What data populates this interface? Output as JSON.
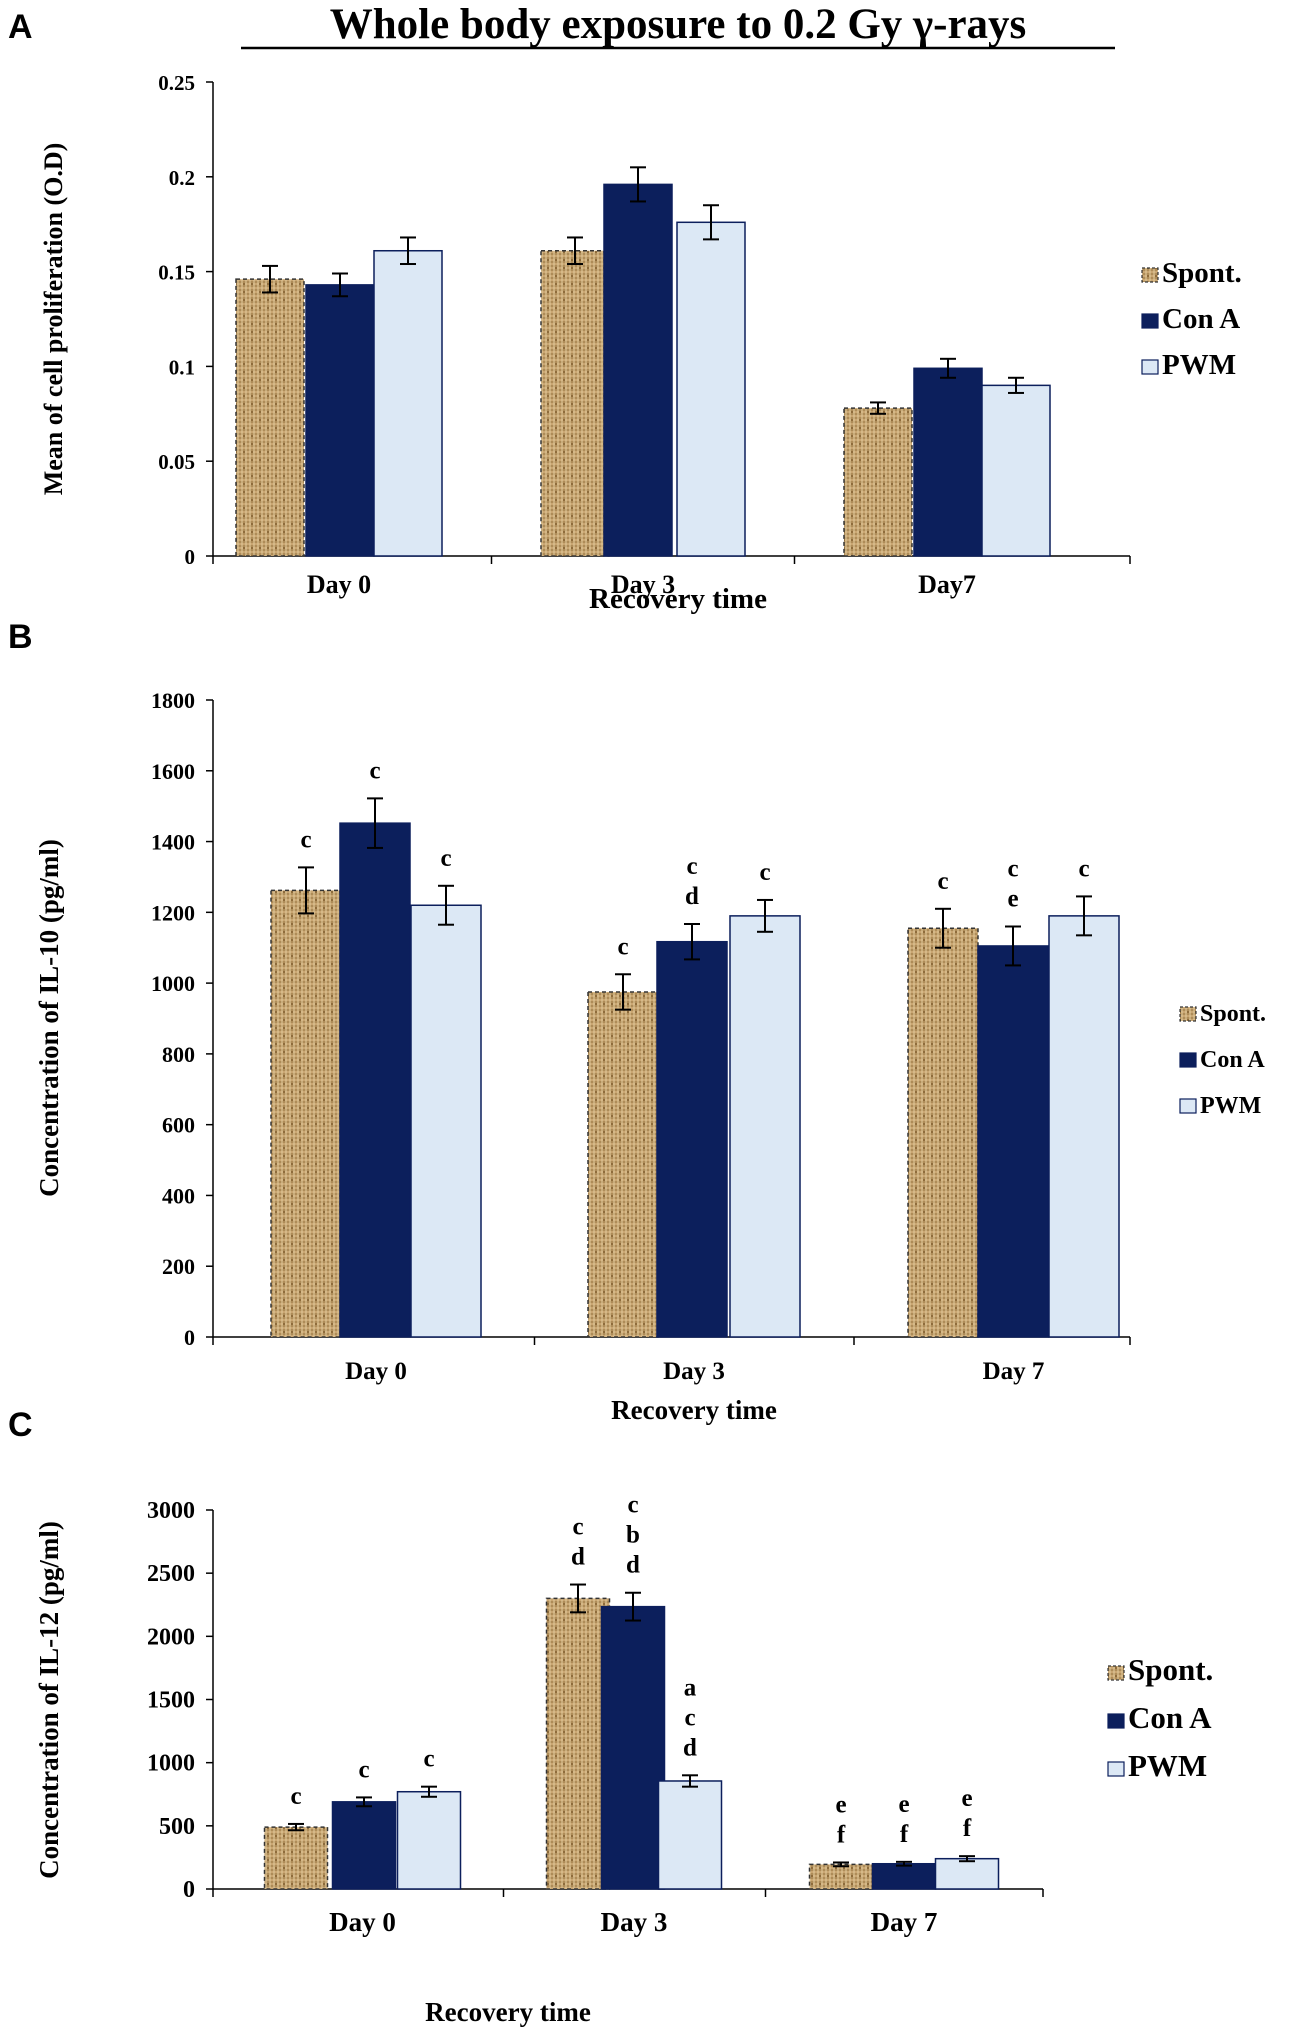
{
  "title": "Whole body exposure to 0.2 Gy γ-rays",
  "colors": {
    "spont_fill": "#c9a672",
    "spont_stroke": "#333333",
    "cona": "#0c1f5c",
    "pwm": "#dce8f5",
    "pwm_stroke": "#0c1f5c",
    "axis": "#000000"
  },
  "chart_data": [
    {
      "panel": "A",
      "type": "bar",
      "title": "Whole body exposure to 0.2 Gy γ-rays",
      "xlabel": "Recovery time",
      "ylabel": "Mean of cell proliferation (O.D)",
      "ylim": [
        0,
        0.25
      ],
      "yticks": [
        "0",
        "0.05",
        "0.1",
        "0.15",
        "0.2",
        "0.25"
      ],
      "categories": [
        "Day 0",
        "Day 3",
        "Day7"
      ],
      "legend": [
        "Spont.",
        "Con A",
        "PWM"
      ],
      "series": [
        {
          "name": "Spont.",
          "values": [
            0.146,
            0.161,
            0.078
          ],
          "errors": [
            0.007,
            0.007,
            0.003
          ]
        },
        {
          "name": "Con A",
          "values": [
            0.143,
            0.196,
            0.099
          ],
          "errors": [
            0.006,
            0.009,
            0.005
          ]
        },
        {
          "name": "PWM",
          "values": [
            0.161,
            0.176,
            0.09
          ],
          "errors": [
            0.007,
            0.009,
            0.004
          ]
        }
      ],
      "annotations": [
        [
          [],
          [],
          []
        ],
        [
          [],
          [],
          []
        ],
        [
          [],
          [],
          []
        ]
      ]
    },
    {
      "panel": "B",
      "type": "bar",
      "title": "",
      "xlabel": "Recovery time",
      "ylabel": "Concentration of IL-10 (pg/ml)",
      "ylim": [
        0,
        1800
      ],
      "yticks": [
        "0",
        "200",
        "400",
        "600",
        "800",
        "1000",
        "1200",
        "1400",
        "1600",
        "1800"
      ],
      "categories": [
        "Day 0",
        "Day 3",
        "Day 7"
      ],
      "legend": [
        "Spont.",
        "Con A",
        "PWM"
      ],
      "series": [
        {
          "name": "Spont.",
          "values": [
            1262,
            975,
            1155
          ],
          "errors": [
            65,
            50,
            55
          ]
        },
        {
          "name": "Con A",
          "values": [
            1452,
            1117,
            1105
          ],
          "errors": [
            70,
            50,
            55
          ]
        },
        {
          "name": "PWM",
          "values": [
            1220,
            1190,
            1190
          ],
          "errors": [
            55,
            45,
            55
          ]
        }
      ],
      "annotations": [
        [
          [
            "c"
          ],
          [
            "c"
          ],
          [
            "c"
          ]
        ],
        [
          [
            "c"
          ],
          [
            "c",
            "d"
          ],
          [
            "c"
          ]
        ],
        [
          [
            "c"
          ],
          [
            "c",
            "e"
          ],
          [
            "c"
          ]
        ]
      ]
    },
    {
      "panel": "C",
      "type": "bar",
      "title": "",
      "xlabel": "Recovery time",
      "ylabel": "Concentration of IL-12 (pg/ml)",
      "ylim": [
        0,
        3000
      ],
      "yticks": [
        "0",
        "500",
        "1000",
        "1500",
        "2000",
        "2500",
        "3000"
      ],
      "categories": [
        "Day 0",
        "Day 3",
        "Day 7"
      ],
      "legend": [
        "Spont.",
        "Con A",
        "PWM"
      ],
      "series": [
        {
          "name": "Spont.",
          "values": [
            490,
            2300,
            195
          ],
          "errors": [
            25,
            110,
            15
          ]
        },
        {
          "name": "Con A",
          "values": [
            690,
            2235,
            200
          ],
          "errors": [
            35,
            110,
            15
          ]
        },
        {
          "name": "PWM",
          "values": [
            770,
            855,
            240
          ],
          "errors": [
            40,
            45,
            20
          ]
        }
      ],
      "annotations": [
        [
          [
            "c"
          ],
          [
            "c"
          ],
          [
            "c"
          ]
        ],
        [
          [
            "c",
            "d"
          ],
          [
            "c",
            "b",
            "d"
          ],
          [
            "a",
            "c",
            "d"
          ]
        ],
        [
          [
            "e",
            "f"
          ],
          [
            "e",
            "f"
          ],
          [
            "e",
            "f"
          ]
        ]
      ]
    }
  ]
}
